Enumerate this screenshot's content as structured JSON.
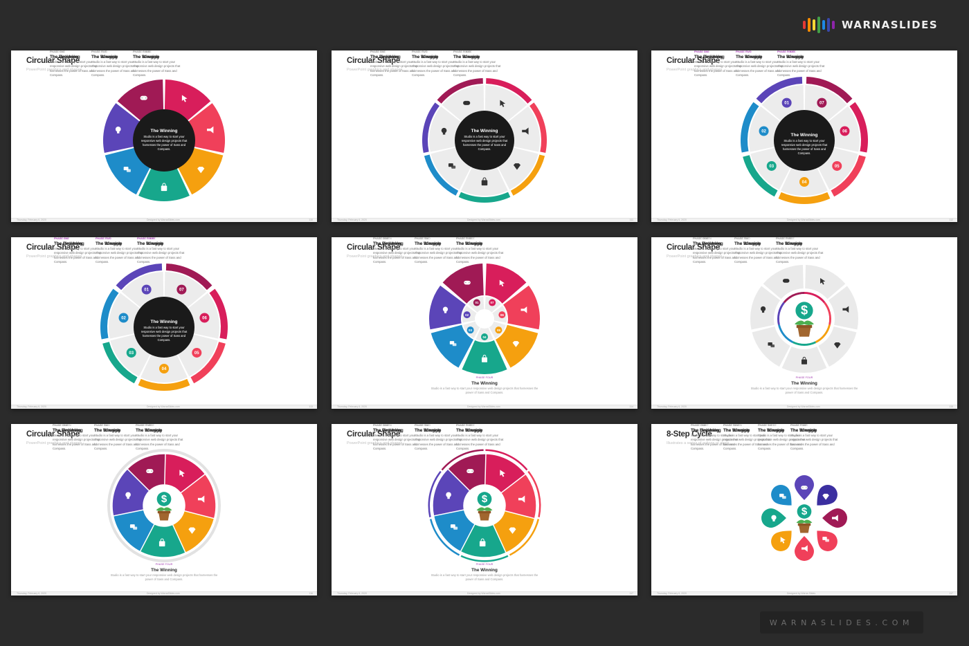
{
  "brand": {
    "name": "WARNASLIDES",
    "bar_colors": [
      "#e53935",
      "#fb8c00",
      "#fdd835",
      "#43a047",
      "#1e88e5",
      "#3949ab",
      "#8e24aa"
    ],
    "footer_url": "WARNASLIDES.COM"
  },
  "palette": {
    "purple": "#5b45b8",
    "maroon": "#a01a55",
    "magenta": "#d81e5b",
    "red": "#f0405a",
    "orange": "#f5a00f",
    "teal": "#17a78c",
    "blue": "#1e8cc9",
    "dark": "#1a1a1a",
    "grey": "#ececec"
  },
  "slides": [
    {
      "id": 1,
      "style": "wheel6",
      "title": "Circular Shape",
      "subtitle": "PowerPoint graphics and shapes",
      "footer": {
        "left": "Thursday, February 6, 2020",
        "center": "Designed by WarnaSlides.com",
        "right": "110"
      },
      "center": {
        "num": "07",
        "name": "The Winning",
        "desc": "Studio is a fast way to start your responsive web design projects that harnesses the power of Sass and Compass."
      },
      "phases": [
        {
          "label": "PHASE ONE",
          "num": "01",
          "name": "The Beginning",
          "desc": "Studio is a fast way to start your responsive web design projects that harnesses the power of Sass and Compass."
        },
        {
          "label": "PHASE TWO",
          "num": "02",
          "name": "The Struggle",
          "desc": "Studio is a fast way to start your responsive web design projects that harnesses the power of Sass and Compass."
        },
        {
          "label": "PHASE THREE",
          "num": "03",
          "name": "The Struggle",
          "desc": "Studio is a fast way to start your responsive web design projects that harnesses the power of Sass and Compass."
        },
        {
          "label": "PHASE SIX",
          "num": "06",
          "name": "The Finishing",
          "desc": "Studio is a fast way to start your responsive web design projects that harnesses the power of Sass and Compass."
        },
        {
          "label": "PHASE FIVE",
          "num": "05",
          "name": "The Winning",
          "desc": "Studio is a fast way to start your responsive web design projects that harnesses the power of Sass and Compass."
        },
        {
          "label": "PHASE FOUR",
          "num": "04",
          "name": "The Winning",
          "desc": "Studio is a fast way to start your responsive web design projects that harnesses the power of Sass and Compass."
        }
      ]
    },
    {
      "id": 2,
      "style": "ring6",
      "title": "Circular Shape",
      "subtitle": "PowerPoint graphics and shapes",
      "footer": {
        "left": "Thursday, February 6, 2020",
        "center": "Designed by WarnaSlides.com",
        "right": "111"
      },
      "center": {
        "num": "07",
        "name": "The Winning",
        "desc": "Studio is a fast way to start your responsive web design projects that harnesses the power of Sass and Compass."
      },
      "phases": [
        {
          "label": "PHASE ONE",
          "num": "01",
          "name": "The Beginning",
          "desc": "Studio is a fast way to start your responsive web design projects that harnesses the power of Sass and Compass."
        },
        {
          "label": "PHASE TWO",
          "num": "02",
          "name": "The Struggle",
          "desc": "Studio is a fast way to start your responsive web design projects that harnesses the power of Sass and Compass."
        },
        {
          "label": "PHASE THREE",
          "num": "03",
          "name": "The Struggle",
          "desc": "Studio is a fast way to start your responsive web design projects that harnesses the power of Sass and Compass."
        },
        {
          "label": "PHASE SIX",
          "num": "06",
          "name": "The Finishing",
          "desc": "Studio is a fast way to start your responsive web design projects that harnesses the power of Sass and Compass."
        },
        {
          "label": "PHASE FIVE",
          "num": "05",
          "name": "The Winning",
          "desc": "Studio is a fast way to start your responsive web design projects that harnesses the power of Sass and Compass."
        },
        {
          "label": "PHASE FOUR",
          "num": "04",
          "name": "The Winning",
          "desc": "Studio is a fast way to start your responsive web design projects that harnesses the power of Sass and Compass."
        }
      ]
    },
    {
      "id": 3,
      "style": "ring7",
      "title": "Circular Shape",
      "subtitle": "PowerPoint graphics and shapes",
      "footer": {
        "left": "Thursday, February 6, 2020",
        "center": "Designed by WarnaSlides.com",
        "right": "112"
      },
      "center": {
        "name": "The Winning",
        "desc": "Studio is a fast way to start your responsive web design projects that harnesses the power of Sass and Compass."
      },
      "numbers": [
        "01",
        "02",
        "03",
        "04",
        "05",
        "06",
        "07"
      ],
      "phases": [
        {
          "label": "PHASE ONE",
          "name": "The Beginning",
          "desc": "Studio is a fast way to start your responsive web design projects that harnesses the power of Sass and Compass."
        },
        {
          "label": "PHASE TWO",
          "name": "The Struggle",
          "desc": "Studio is a fast way to start your responsive web design projects that harnesses the power of Sass and Compass."
        },
        {
          "label": "PHASE THREE",
          "name": "The Struggle",
          "desc": "Studio is a fast way to start your responsive web design projects that harnesses the power of Sass and Compass."
        },
        {
          "label": "PHASE SIX",
          "name": "The Finishing",
          "desc": "Studio is a fast way to start your responsive web design projects that harnesses the power of Sass and Compass."
        },
        {
          "label": "PHASE FIVE",
          "name": "The Winning",
          "desc": "Studio is a fast way to start your responsive web design projects that harnesses the power of Sass and Compass."
        },
        {
          "label": "PHASE FOUR",
          "name": "The Winning",
          "desc": "Studio is a fast way to start your responsive web design projects that harnesses the power of Sass and Compass."
        }
      ]
    },
    {
      "id": 4,
      "style": "ring7",
      "title": "Circular Shape",
      "subtitle": "PowerPoint graphics and shapes",
      "footer": {
        "left": "Thursday, February 6, 2020",
        "center": "Designed by WarnaSlides.com",
        "right": "113"
      },
      "center": {
        "name": "The Winning",
        "desc": "Studio is a fast way to start your responsive web design projects that harnesses the power of Sass and Compass."
      },
      "numbers": [
        "01",
        "02",
        "03",
        "04",
        "05",
        "06",
        "07"
      ],
      "phases": [
        {
          "label": "PHASE ONE",
          "name": "The Beginning",
          "desc": "Studio is a fast way to start your responsive web design projects that harnesses the power of Sass and Compass."
        },
        {
          "label": "PHASE TWO",
          "name": "The Struggle",
          "desc": "Studio is a fast way to start your responsive web design projects that harnesses the power of Sass and Compass."
        },
        {
          "label": "PHASE THREE",
          "name": "The Struggle",
          "desc": "Studio is a fast way to start your responsive web design projects that harnesses the power of Sass and Compass."
        },
        {
          "label": "PHASE SIX",
          "name": "The Finishing",
          "desc": "Studio is a fast way to start your responsive web design projects that harnesses the power of Sass and Compass."
        },
        {
          "label": "PHASE FIVE",
          "name": "The Winning",
          "desc": "Studio is a fast way to start your responsive web design projects that harnesses the power of Sass and Compass."
        },
        {
          "label": "PHASE FOUR",
          "name": "The Winning",
          "desc": "Studio is a fast way to start your responsive web design projects that harnesses the power of Sass and Compass."
        }
      ]
    },
    {
      "id": 5,
      "style": "petals7",
      "title": "Circular Shape",
      "subtitle": "PowerPoint graphics and shapes",
      "footer": {
        "left": "Thursday, February 6, 2020",
        "center": "Designed by WarnaSlides.com",
        "right": "114"
      },
      "numbers": [
        "01",
        "02",
        "03",
        "04",
        "05",
        "06",
        "07"
      ],
      "phases": [
        {
          "label": "PHASE ONE",
          "name": "The Beginning",
          "desc": "Studio is a fast way to start your responsive web design projects that harnesses the power of Sass and Compass."
        },
        {
          "label": "PHASE TWO",
          "name": "The Struggle",
          "desc": "Studio is a fast way to start your responsive web design projects that harnesses the power of Sass and Compass."
        },
        {
          "label": "PHASE THREE",
          "name": "The Struggle",
          "desc": "Studio is a fast way to start your responsive web design projects that harnesses the power of Sass and Compass."
        },
        {
          "label": "PHASE SEVEN",
          "name": "The Finishing",
          "desc": "Studio is a fast way to start your responsive web design projects that harnesses the power of Sass and Compass."
        },
        {
          "label": "PHASE SIX",
          "name": "The Winning",
          "desc": "Studio is a fast way to start your responsive web design projects that harnesses the power of Sass and Compass."
        },
        {
          "label": "PHASE FIVE",
          "name": "The Winning",
          "desc": "Studio is a fast way to start your responsive web design projects that harnesses the power of Sass and Compass."
        }
      ],
      "bottom": {
        "label": "PHASE FOUR",
        "name": "The Winning",
        "desc": "Studio is a fast way to start your responsive web design projects that harnesses the power of Sass and Compass."
      }
    },
    {
      "id": 6,
      "style": "greyring",
      "title": "Circular Shape",
      "subtitle": "PowerPoint graphics and shapes",
      "footer": {
        "left": "Thursday, February 6, 2020",
        "center": "Designed by WarnaSlides.com",
        "right": "115"
      },
      "phases": [
        {
          "label": "PHASE ONE",
          "name": "The Beginning",
          "desc": "Studio is a fast way to start your responsive web design projects that harnesses the power of Sass and Compass."
        },
        {
          "label": "PHASE TWO",
          "name": "The Struggle",
          "desc": "Studio is a fast way to start your responsive web design projects that harnesses the power of Sass and Compass."
        },
        {
          "label": "PHASE THREE",
          "name": "The Struggle",
          "desc": "Studio is a fast way to start your responsive web design projects that harnesses the power of Sass and Compass."
        },
        {
          "label": "PHASE SEVEN",
          "name": "The Finishing",
          "desc": "Studio is a fast way to start your responsive web design projects that harnesses the power of Sass and Compass."
        },
        {
          "label": "PHASE SIX",
          "name": "The Winning",
          "desc": "Studio is a fast way to start your responsive web design projects that harnesses the power of Sass and Compass."
        },
        {
          "label": "PHASE FIVE",
          "name": "The Winning",
          "desc": "Studio is a fast way to start your responsive web design projects that harnesses the power of Sass and Compass."
        }
      ],
      "bottom": {
        "label": "PHASE FOUR",
        "name": "The Winning",
        "desc": "Studio is a fast way to start your responsive web design projects that harnesses the power of Sass and Compass."
      }
    },
    {
      "id": 7,
      "style": "swirl",
      "title": "Circular Shape",
      "subtitle": "PowerPoint graphics and shapes",
      "footer": {
        "left": "Thursday, February 6, 2020",
        "center": "Designed by WarnaSlides.com",
        "right": "116"
      },
      "phases": [
        {
          "label": "PHASE ONE",
          "name": "The Beginning",
          "desc": "Studio is a fast way to start your responsive web design projects that harnesses the power of Sass and Compass."
        },
        {
          "label": "PHASE TWO",
          "name": "The Struggle",
          "desc": "Studio is a fast way to start your responsive web design projects that harnesses the power of Sass and Compass."
        },
        {
          "label": "PHASE THREE",
          "name": "The Struggle",
          "desc": "Studio is a fast way to start your responsive web design projects that harnesses the power of Sass and Compass."
        },
        {
          "label": "PHASE SEVEN",
          "name": "The Finishing",
          "desc": "Studio is a fast way to start your responsive web design projects that harnesses the power of Sass and Compass."
        },
        {
          "label": "PHASE SIX",
          "name": "The Winning",
          "desc": "Studio is a fast way to start your responsive web design projects that harnesses the power of Sass and Compass."
        },
        {
          "label": "PHASE FIVE",
          "name": "The Winning",
          "desc": "Studio is a fast way to start your responsive web design projects that harnesses the power of Sass and Compass."
        }
      ],
      "bottom": {
        "label": "PHASE FOUR",
        "name": "The Winning",
        "desc": "Studio is a fast way to start your responsive web design projects that harnesses the power of Sass and Compass."
      }
    },
    {
      "id": 8,
      "style": "swirlring",
      "title": "Circular Shape",
      "subtitle": "PowerPoint graphics and shapes",
      "footer": {
        "left": "Thursday, February 6, 2020",
        "center": "Designed by WarnaSlides.com",
        "right": "117"
      },
      "phases": [
        {
          "label": "PHASE ONE",
          "name": "The Beginning",
          "desc": "Studio is a fast way to start your responsive web design projects that harnesses the power of Sass and Compass."
        },
        {
          "label": "PHASE TWO",
          "name": "The Struggle",
          "desc": "Studio is a fast way to start your responsive web design projects that harnesses the power of Sass and Compass."
        },
        {
          "label": "PHASE THREE",
          "name": "The Struggle",
          "desc": "Studio is a fast way to start your responsive web design projects that harnesses the power of Sass and Compass."
        },
        {
          "label": "PHASE SEVEN",
          "name": "The Finishing",
          "desc": "Studio is a fast way to start your responsive web design projects that harnesses the power of Sass and Compass."
        },
        {
          "label": "PHASE SIX",
          "name": "The Winning",
          "desc": "Studio is a fast way to start your responsive web design projects that harnesses the power of Sass and Compass."
        },
        {
          "label": "PHASE FIVE",
          "name": "The Winning",
          "desc": "Studio is a fast way to start your responsive web design projects that harnesses the power of Sass and Compass."
        }
      ],
      "bottom": {
        "label": "PHASE FOUR",
        "name": "The Winning",
        "desc": "Studio is a fast way to start your responsive web design projects that harnesses the power of Sass and Compass."
      }
    },
    {
      "id": 9,
      "style": "drops",
      "title": "8-Step Cycle",
      "subtitle": "Illustrates a series of actions or steps",
      "footer": {
        "left": "Thursday, February 6, 2020",
        "center": "Designed by Warna Slides",
        "right": "117"
      },
      "phases": [
        {
          "label": "PHASE ONE",
          "name": "The Beginning",
          "desc": "Studio is a fast way to start your responsive web design projects that harnesses the power of Sass and Compass."
        },
        {
          "label": "PHASE TWO",
          "name": "The Struggle",
          "desc": "Studio is a fast way to start your responsive web design projects that harnesses the power of Sass and Compass."
        },
        {
          "label": "PHASE THREE",
          "name": "The Struggle",
          "desc": "Studio is a fast way to start your responsive web design projects that harnesses the power of Sass and Compass."
        },
        {
          "label": "PHASE FOUR",
          "name": "The Struggle",
          "desc": "Studio is a fast way to start your responsive web design projects that harnesses the power of Sass and Compass."
        },
        {
          "label": "PHASE EIGHT",
          "name": "The Finishing",
          "desc": "Studio is a fast way to start your responsive web design projects that harnesses the power of Sass and Compass."
        },
        {
          "label": "PHASE SEVEN",
          "name": "The Winning",
          "desc": "Studio is a fast way to start your responsive web design projects that harnesses the power of Sass and Compass."
        },
        {
          "label": "PHASE SIX",
          "name": "The Winning",
          "desc": "Studio is a fast way to start your responsive web design projects that harnesses the power of Sass and Compass."
        },
        {
          "label": "PHASE FIVE",
          "name": "The Winning",
          "desc": "Studio is a fast way to start your responsive web design projects that harnesses the power of Sass and Compass."
        }
      ]
    }
  ]
}
